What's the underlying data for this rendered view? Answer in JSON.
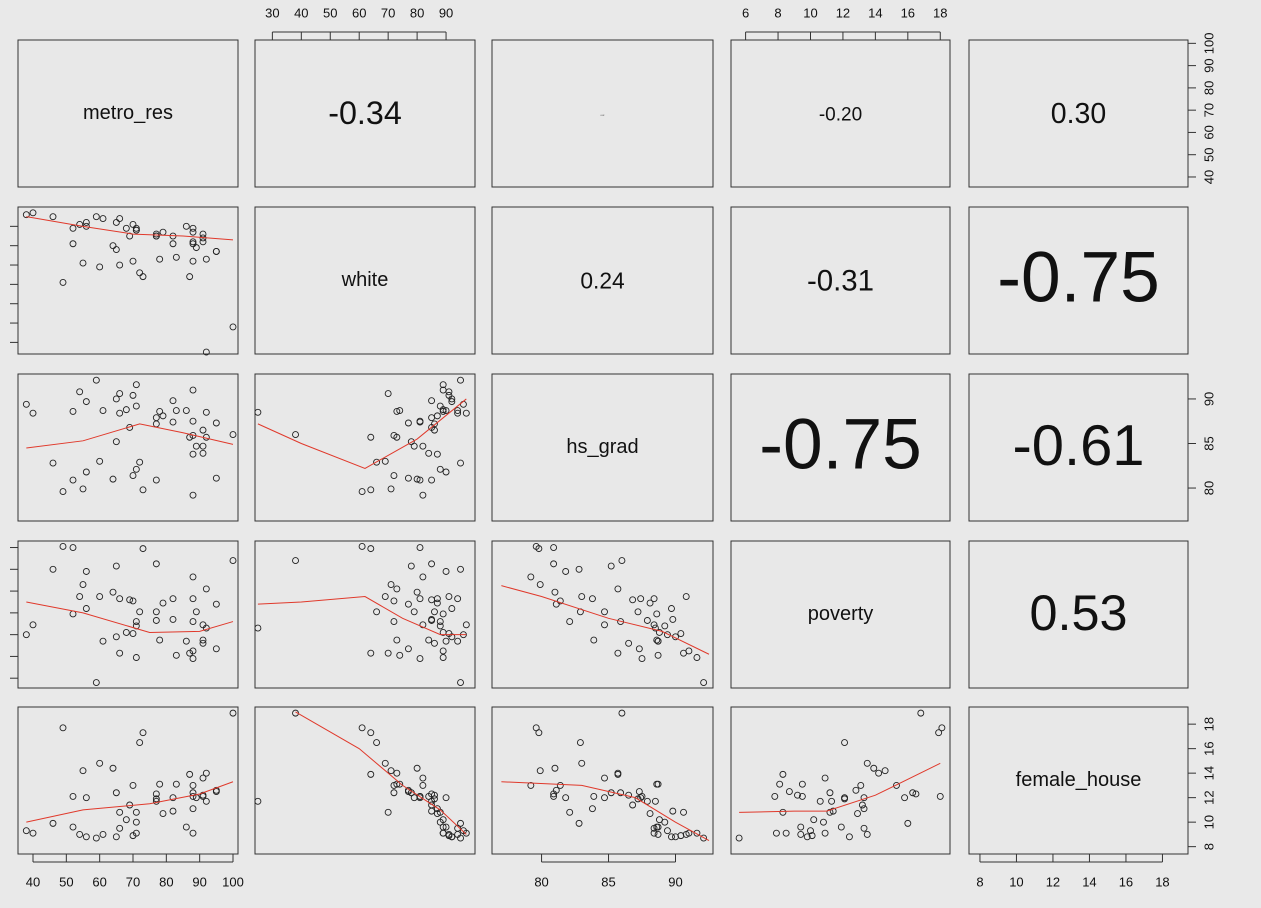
{
  "chart_data": {
    "type": "scatter-matrix",
    "point_color": "#222222",
    "smoother_color": "#e0392b",
    "variables": [
      {
        "name": "metro_res",
        "lim": [
          35.5,
          101.5
        ],
        "ticks": [
          40,
          50,
          60,
          70,
          80,
          90,
          100
        ],
        "values": [
          55,
          66,
          88,
          52,
          95,
          86,
          88,
          83,
          100,
          89,
          72,
          92,
          66,
          88,
          71,
          61,
          71,
          56,
          73,
          40,
          87,
          91,
          82,
          71,
          49,
          69,
          54,
          70,
          91,
          59,
          95,
          77,
          92,
          70,
          56,
          77,
          65,
          79,
          77,
          91,
          60,
          52,
          64,
          88,
          88,
          38,
          78,
          82,
          46,
          68,
          65
        ]
      },
      {
        "name": "white",
        "lim": [
          24,
          100
        ],
        "ticks": [
          30,
          40,
          50,
          60,
          70,
          80,
          90
        ],
        "values": [
          71,
          70,
          87,
          81,
          77,
          90,
          81,
          74,
          38,
          79,
          66,
          25,
          94,
          72,
          88,
          94,
          88,
          90,
          64,
          97,
          64,
          86,
          81,
          89,
          61,
          85,
          91,
          91,
          84,
          95,
          77,
          85,
          73,
          72,
          92,
          86,
          78,
          87,
          85,
          82,
          69,
          89,
          80,
          82,
          89,
          96,
          73,
          85,
          95,
          89,
          92
        ]
      },
      {
        "name": "hs_grad",
        "lim": [
          76.3,
          92.8
        ],
        "ticks": [
          80,
          85,
          90
        ],
        "values": [
          79.9,
          90.6,
          83.8,
          80.9,
          81.1,
          88.7,
          87.5,
          88.7,
          86.0,
          84.7,
          82.9,
          88.5,
          88.4,
          85.9,
          82.1,
          88.7,
          89.2,
          81.8,
          79.8,
          88.4,
          85.7,
          86.5,
          87.4,
          91.6,
          79.6,
          86.8,
          90.8,
          90.4,
          83.9,
          92.1,
          87.3,
          80.9,
          85.7,
          81.4,
          89.7,
          87.2,
          85.2,
          88.1,
          87.9,
          84.7,
          83.0,
          88.6,
          81.0,
          79.2,
          91.0,
          89.4,
          88.6,
          89.8,
          82.8,
          88.8,
          90.0
        ]
      },
      {
        "name": "poverty",
        "lim": [
          5.1,
          18.6
        ],
        "ticks": [
          6,
          8,
          10,
          12,
          14,
          16,
          18
        ],
        "values": [
          14.6,
          8.3,
          13.3,
          18.0,
          12.8,
          9.4,
          7.8,
          8.1,
          16.8,
          12.1,
          12.1,
          10.6,
          13.3,
          11.2,
          11.2,
          9.4,
          10.8,
          15.8,
          17.9,
          10.9,
          8.3,
          9.2,
          13.3,
          7.9,
          18.1,
          13.2,
          13.5,
          10.1,
          9.5,
          5.6,
          8.7,
          16.5,
          14.2,
          13.1,
          12.4,
          12.1,
          16.3,
          12.9,
          11.3,
          10.9,
          13.5,
          11.9,
          13.9,
          15.3,
          8.5,
          10.0,
          9.5,
          11.4,
          16.0,
          10.2,
          9.8
        ]
      },
      {
        "name": "female_house",
        "lim": [
          7.4,
          19.4
        ],
        "ticks": [
          8,
          10,
          12,
          14,
          16,
          18
        ],
        "values": [
          14.2,
          10.8,
          11.1,
          12.1,
          12.6,
          9.6,
          12.1,
          13.1,
          18.9,
          12.0,
          16.5,
          11.7,
          9.5,
          12.4,
          10.8,
          9.0,
          10.0,
          12.0,
          17.3,
          9.1,
          13.9,
          12.2,
          12.0,
          9.1,
          17.7,
          11.4,
          9.0,
          8.9,
          12.1,
          8.7,
          12.5,
          12.3,
          14.0,
          13.0,
          8.8,
          11.9,
          12.4,
          10.7,
          11.7,
          13.6,
          14.8,
          9.6,
          14.4,
          13.0,
          9.1,
          9.3,
          13.1,
          10.9,
          9.9,
          10.2,
          8.8
        ]
      }
    ],
    "correlations": {
      "values": [
        -0.34,
        0.02,
        -0.2,
        0.3,
        0.24,
        -0.31,
        -0.75,
        -0.75,
        -0.61,
        0.53
      ],
      "value_labels": [
        "-0.34",
        "0.02",
        "-0.20",
        "0.30",
        "0.24",
        "-0.31",
        "-0.75",
        "-0.75",
        "-0.61",
        "0.53"
      ]
    },
    "smoothers": [
      {
        "x": [
          38,
          55,
          70,
          85,
          100
        ],
        "y": [
          95,
          90,
          86,
          85,
          83
        ]
      },
      {
        "x": [
          38,
          55,
          72,
          85,
          100
        ],
        "y": [
          84.5,
          85.3,
          87.2,
          86.2,
          84.9
        ]
      },
      {
        "x": [
          25,
          40,
          62,
          80,
          97
        ],
        "y": [
          87.2,
          85,
          82.2,
          85.5,
          90
        ]
      },
      {
        "x": [
          38,
          55,
          75,
          90,
          100
        ],
        "y": [
          13,
          12,
          10.2,
          10.3,
          11.2
        ]
      },
      {
        "x": [
          25,
          40,
          62,
          75,
          88,
          97
        ],
        "y": [
          12.8,
          13,
          13.5,
          11.5,
          10,
          10
        ]
      },
      {
        "x": [
          77,
          80,
          85,
          89,
          92.5
        ],
        "y": [
          14.5,
          13.5,
          11.5,
          10.3,
          8.2
        ]
      },
      {
        "x": [
          38,
          55,
          75,
          90,
          100
        ],
        "y": [
          10,
          11,
          11.5,
          12.3,
          13.3
        ]
      },
      {
        "x": [
          38,
          60,
          75,
          88,
          97
        ],
        "y": [
          19,
          16,
          13,
          11,
          9
        ]
      },
      {
        "x": [
          77,
          83,
          87,
          90,
          92.5
        ],
        "y": [
          13.3,
          13,
          12,
          10,
          8.5
        ]
      },
      {
        "x": [
          5.6,
          9,
          11,
          14,
          18
        ],
        "y": [
          10.8,
          10.9,
          10.9,
          12.2,
          14.8
        ]
      }
    ]
  }
}
